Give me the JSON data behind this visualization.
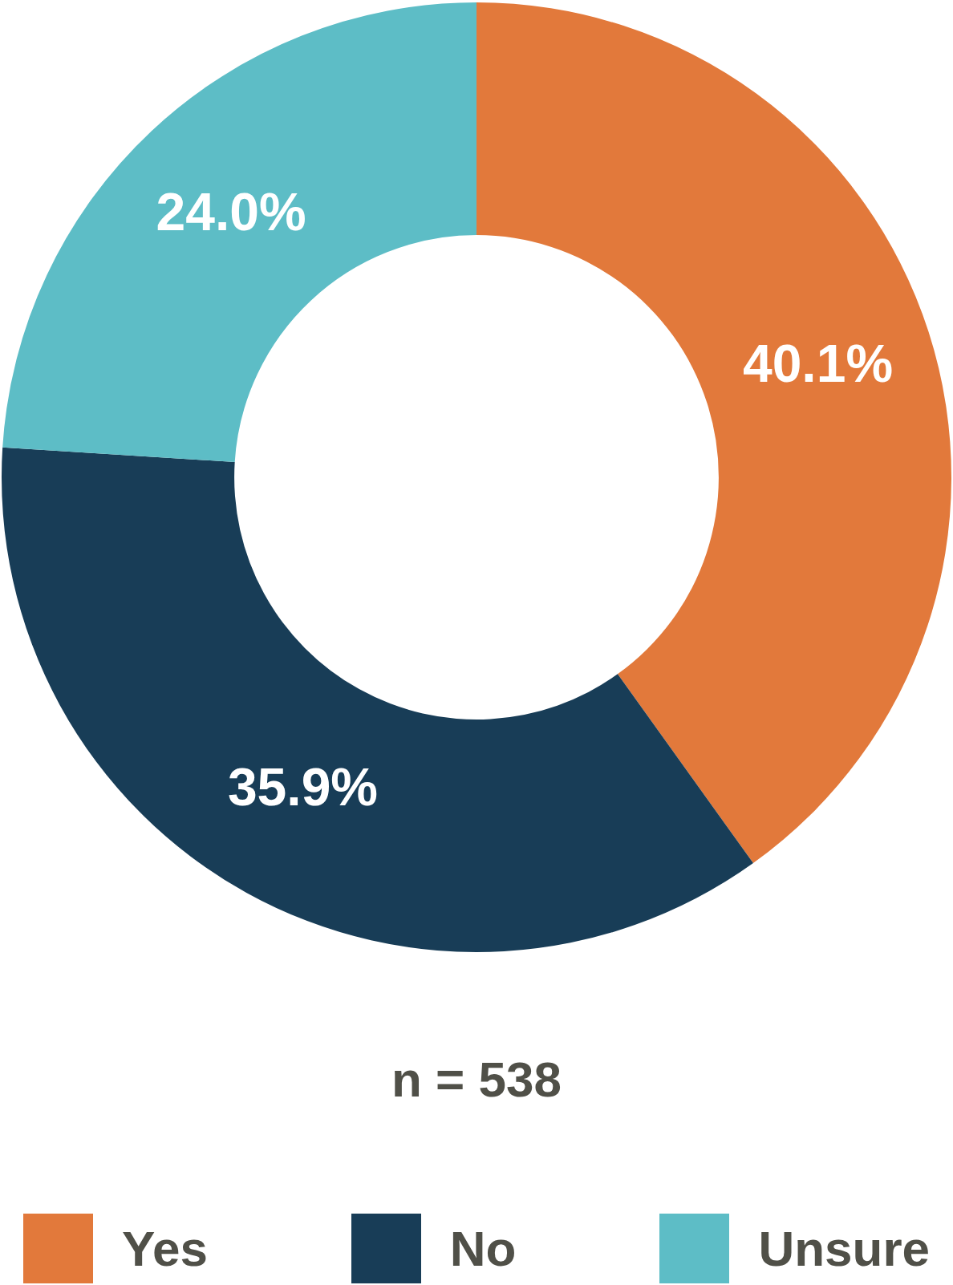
{
  "chart_data": {
    "type": "donut",
    "categories": [
      "Yes",
      "No",
      "Unsure"
    ],
    "values": [
      40.1,
      35.9,
      24.0
    ],
    "value_labels": [
      "40.1%",
      "35.9%",
      "24.0%"
    ],
    "colors": [
      "#e2793b",
      "#183d57",
      "#5dbdc6"
    ],
    "annotations": [
      "n = 538"
    ],
    "legend": "bottom"
  }
}
